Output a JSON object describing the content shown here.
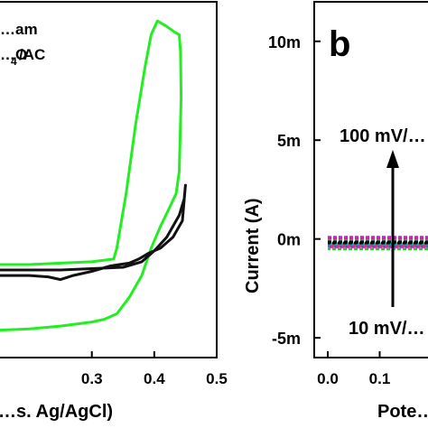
{
  "chart_data": [
    {
      "type": "line",
      "panel": "a",
      "title": "",
      "xlabel": "…s. Ag/AgCl)",
      "ylabel": "",
      "xlim": [
        0.15,
        0.5
      ],
      "ylim": [
        -0.3,
        1.0
      ],
      "x_ticks": [
        0.3,
        0.4,
        0.5
      ],
      "x_tick_labels": [
        "0.3",
        "0.4",
        "0.5"
      ],
      "legend": [
        "…am",
        "…O",
        "4",
        "/AC"
      ],
      "series": [
        {
          "color": "#22ee22",
          "points": [
            [
              0.15,
              0.04
            ],
            [
              0.2,
              0.04
            ],
            [
              0.25,
              0.045
            ],
            [
              0.3,
              0.05
            ],
            [
              0.335,
              0.06
            ],
            [
              0.34,
              0.1
            ],
            [
              0.355,
              0.3
            ],
            [
              0.37,
              0.55
            ],
            [
              0.385,
              0.76
            ],
            [
              0.395,
              0.88
            ],
            [
              0.405,
              0.93
            ],
            [
              0.42,
              0.91
            ],
            [
              0.432,
              0.89
            ],
            [
              0.44,
              0.88
            ],
            [
              0.442,
              0.82
            ],
            [
              0.443,
              0.65
            ],
            [
              0.44,
              0.38
            ],
            [
              0.435,
              0.3
            ],
            [
              0.425,
              0.25
            ],
            [
              0.41,
              0.18
            ],
            [
              0.395,
              0.1
            ],
            [
              0.38,
              0.0
            ],
            [
              0.36,
              -0.08
            ],
            [
              0.34,
              -0.14
            ],
            [
              0.32,
              -0.16
            ],
            [
              0.3,
              -0.17
            ],
            [
              0.25,
              -0.185
            ],
            [
              0.2,
              -0.195
            ],
            [
              0.15,
              -0.2
            ]
          ]
        },
        {
          "color": "#111111",
          "points": [
            [
              0.15,
              0.02
            ],
            [
              0.25,
              0.02
            ],
            [
              0.3,
              0.025
            ],
            [
              0.35,
              0.03
            ],
            [
              0.38,
              0.05
            ],
            [
              0.4,
              0.09
            ],
            [
              0.42,
              0.14
            ],
            [
              0.44,
              0.22
            ],
            [
              0.448,
              0.28
            ],
            [
              0.45,
              0.33
            ],
            [
              0.445,
              0.2
            ],
            [
              0.43,
              0.14
            ],
            [
              0.41,
              0.1
            ],
            [
              0.39,
              0.08
            ],
            [
              0.375,
              0.06
            ],
            [
              0.36,
              0.045
            ],
            [
              0.33,
              0.035
            ],
            [
              0.3,
              0.015
            ],
            [
              0.27,
              0.0
            ],
            [
              0.25,
              -0.015
            ],
            [
              0.23,
              -0.005
            ],
            [
              0.2,
              0.0
            ],
            [
              0.15,
              0.0
            ]
          ]
        }
      ]
    },
    {
      "type": "line",
      "panel": "b",
      "panel_label": "b",
      "title": "",
      "xlabel": "Pote…",
      "ylabel": "Current (A)",
      "xlim": [
        0.0,
        0.2
      ],
      "ylim": [
        -0.006,
        0.012
      ],
      "y_ticks": [
        -0.005,
        0,
        0.005,
        0.01
      ],
      "y_tick_labels": [
        "-5m",
        "0m",
        "5m",
        "10m"
      ],
      "x_ticks": [
        0.0,
        0.1
      ],
      "x_tick_labels": [
        "0.0",
        "0.1"
      ],
      "annotations": {
        "top": "100 mV/…",
        "bottom": "10 mV/…"
      },
      "series": [
        {
          "color": "#22cc22",
          "points": [
            [
              0.0,
              0.0001
            ],
            [
              0.06,
              0.0001
            ],
            [
              0.12,
              0.0001
            ],
            [
              0.2,
              0.0001
            ],
            [
              0.2,
              -0.0005
            ],
            [
              0.12,
              -0.0005
            ],
            [
              0.06,
              -0.0005
            ],
            [
              0.0,
              -0.0005
            ]
          ]
        },
        {
          "color": "#ff00ff",
          "points": [
            [
              0.0,
              5e-05
            ],
            [
              0.1,
              5e-05
            ],
            [
              0.2,
              5e-05
            ],
            [
              0.2,
              -0.0004
            ],
            [
              0.1,
              -0.0004
            ],
            [
              0.0,
              -0.0004
            ]
          ]
        },
        {
          "color": "#3355ff",
          "points": [
            [
              0.0,
              0.0
            ],
            [
              0.1,
              0.0
            ],
            [
              0.2,
              0.0
            ],
            [
              0.2,
              -0.00035
            ],
            [
              0.1,
              -0.00035
            ],
            [
              0.0,
              -0.00035
            ]
          ]
        },
        {
          "color": "#ff3333",
          "points": [
            [
              0.0,
              -5e-05
            ],
            [
              0.1,
              -5e-05
            ],
            [
              0.2,
              -5e-05
            ],
            [
              0.2,
              -0.0003
            ],
            [
              0.1,
              -0.0003
            ],
            [
              0.0,
              -0.0003
            ]
          ]
        },
        {
          "color": "#00bbbb",
          "points": [
            [
              0.0,
              -0.0001
            ],
            [
              0.1,
              -0.0001
            ],
            [
              0.2,
              -0.0001
            ],
            [
              0.2,
              -0.00025
            ],
            [
              0.1,
              -0.00025
            ],
            [
              0.0,
              -0.00025
            ]
          ]
        },
        {
          "color": "#000000",
          "points": [
            [
              0.0,
              -0.00015
            ],
            [
              0.1,
              -0.00015
            ],
            [
              0.2,
              -0.00015
            ],
            [
              0.2,
              -0.0002
            ],
            [
              0.1,
              -0.0002
            ],
            [
              0.0,
              -0.0002
            ]
          ]
        }
      ]
    }
  ]
}
